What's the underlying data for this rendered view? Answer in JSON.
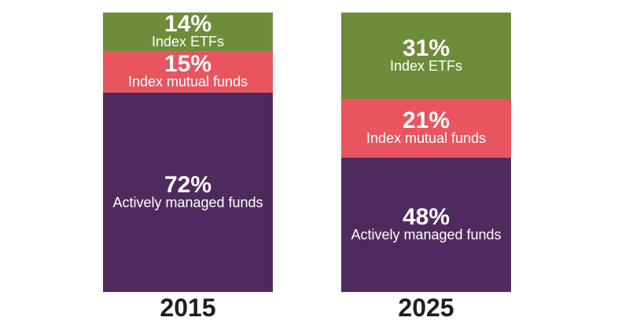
{
  "chart_data": {
    "type": "bar",
    "stacked": true,
    "normalized": true,
    "categories": [
      "2015",
      "2025"
    ],
    "series": [
      {
        "name": "Actively managed funds",
        "values": [
          72,
          48
        ],
        "color": "#4f2a5e"
      },
      {
        "name": "Index mutual funds",
        "values": [
          15,
          21
        ],
        "color": "#e8555f"
      },
      {
        "name": "Index ETFs",
        "values": [
          14,
          31
        ],
        "color": "#6f8c3a"
      }
    ],
    "value_labels": [
      [
        "72%",
        "15%",
        "14%"
      ],
      [
        "48%",
        "21%",
        "31%"
      ]
    ],
    "title": "",
    "xlabel": "",
    "ylabel": "",
    "ylim": [
      0,
      100
    ],
    "grid": false,
    "legend": "none"
  }
}
